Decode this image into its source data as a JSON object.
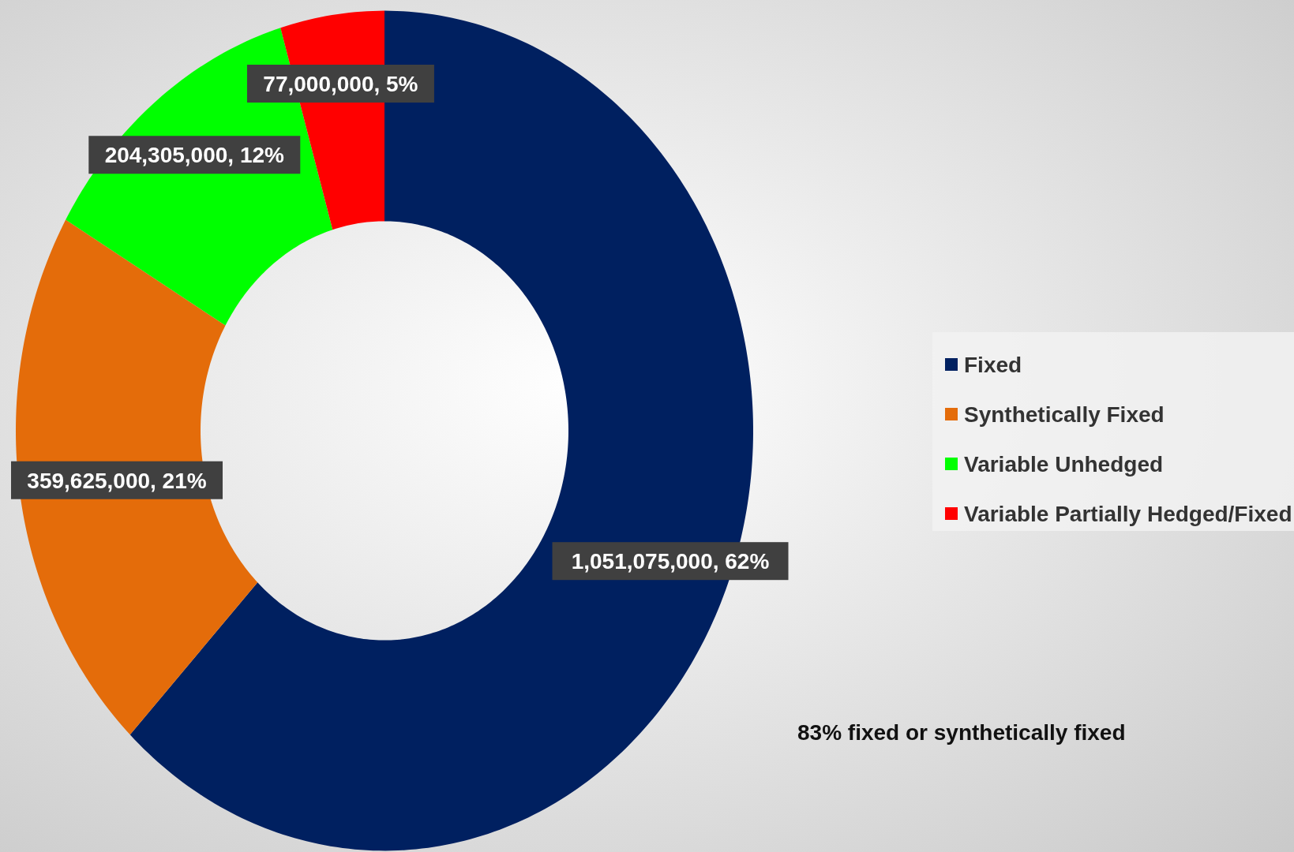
{
  "chart_data": {
    "type": "donut",
    "categories": [
      "Fixed",
      "Synthetically Fixed",
      "Variable Unhedged",
      "Variable Partially Hedged/Fixed"
    ],
    "values": [
      1051075000,
      359625000,
      204305000,
      77000000
    ],
    "colors": [
      "#002060",
      "#e46c0a",
      "#00ff00",
      "#ff0000"
    ],
    "value_labels": [
      "1,051,075,000, 62%",
      "359,625,000, 21%",
      "204,305,000, 12%",
      "77,000,000, 5%"
    ],
    "legend": "right",
    "annotations": [
      "83% fixed or synthetically fixed"
    ]
  }
}
